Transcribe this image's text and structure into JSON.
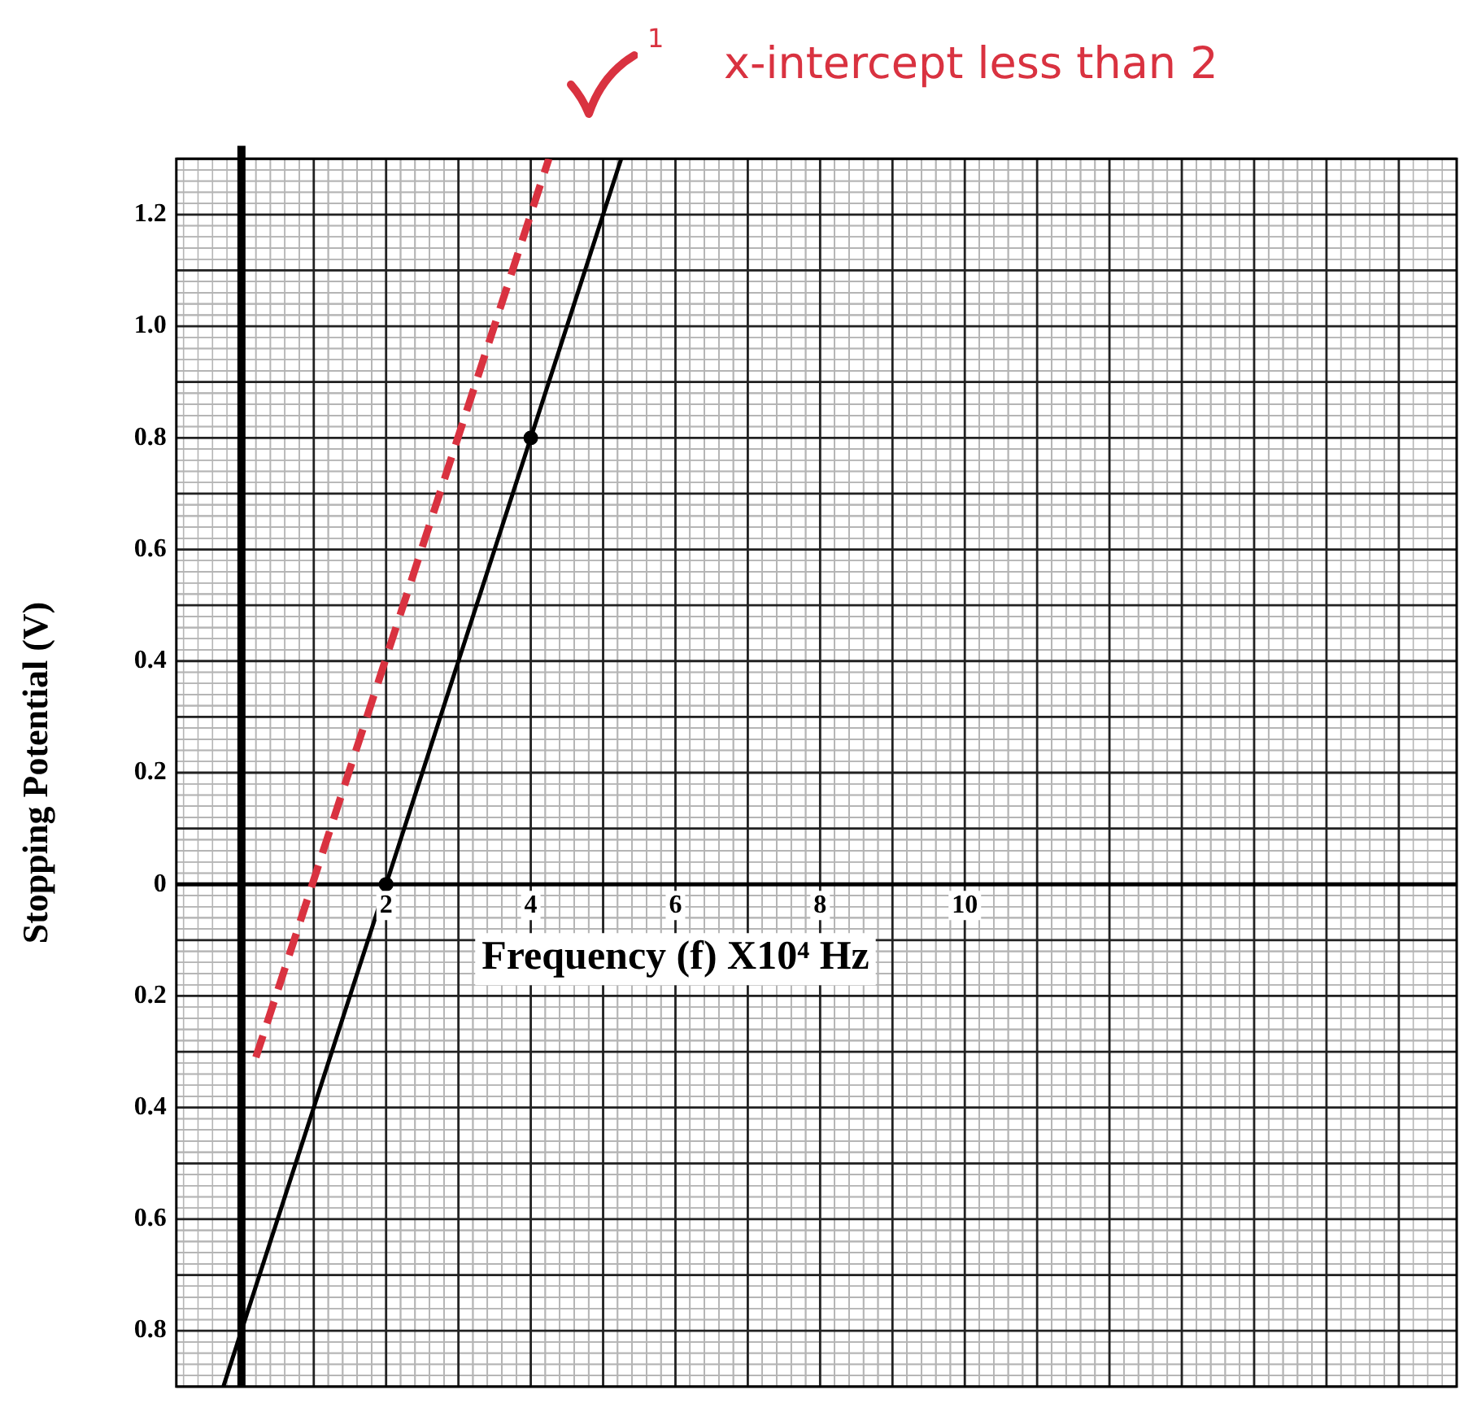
{
  "chart_data": {
    "type": "line",
    "xlabel": "Frequency (f) X10⁴ Hz",
    "ylabel": "Stopping Potential (V)",
    "annotations": [
      "1",
      "x-intercept less than 2"
    ],
    "xlim": [
      -0.9,
      16.8
    ],
    "ylim": [
      -0.9,
      1.3
    ],
    "xticks": [
      {
        "value": 0,
        "label": null
      },
      {
        "value": 1,
        "label": null
      },
      2,
      {
        "value": 3,
        "label": null
      },
      4,
      {
        "value": 5,
        "label": null
      },
      6,
      {
        "value": 7,
        "label": null
      },
      8,
      {
        "value": 9,
        "label": null
      },
      10,
      {
        "value": 11,
        "label": null
      },
      {
        "value": 12,
        "label": null
      },
      {
        "value": 13,
        "label": null
      },
      {
        "value": 14,
        "label": null
      },
      {
        "value": 15,
        "label": null
      },
      {
        "value": 16,
        "label": null
      }
    ],
    "yticks": [
      {
        "value": -0.9,
        "label": null
      },
      {
        "value": -0.8,
        "label": "0.8"
      },
      {
        "value": -0.7,
        "label": null
      },
      {
        "value": -0.6,
        "label": "0.6"
      },
      {
        "value": -0.5,
        "label": null
      },
      {
        "value": -0.4,
        "label": "0.4"
      },
      {
        "value": -0.3,
        "label": null
      },
      {
        "value": -0.2,
        "label": "0.2"
      },
      {
        "value": -0.1,
        "label": null
      },
      0,
      {
        "value": 0.1,
        "label": null
      },
      0.2,
      {
        "value": 0.3,
        "label": null
      },
      0.4,
      {
        "value": 0.5,
        "label": null
      },
      0.6,
      {
        "value": 0.7,
        "label": null
      },
      0.8,
      {
        "value": 0.9,
        "label": null
      },
      {
        "value": 1.0,
        "label": "1.0"
      },
      {
        "value": 1.1,
        "label": null
      },
      1.2,
      {
        "value": 1.3,
        "label": null
      }
    ],
    "grid": true,
    "legend": false,
    "series": [
      {
        "type": "line",
        "color": "#000000",
        "x": [
          -0.25,
          5.25
        ],
        "values": [
          -0.9,
          1.3
        ],
        "marker": "none",
        "line_style": "solid"
      },
      {
        "type": "scatter",
        "color": "#000000",
        "x": [
          2,
          4
        ],
        "values": [
          0,
          0.8
        ],
        "marker": "circle"
      },
      {
        "type": "line",
        "color": "#d93240",
        "x": [
          0.2,
          4.25
        ],
        "values": [
          -0.31,
          1.3
        ],
        "marker": "none",
        "line_style": "dashed"
      }
    ]
  }
}
